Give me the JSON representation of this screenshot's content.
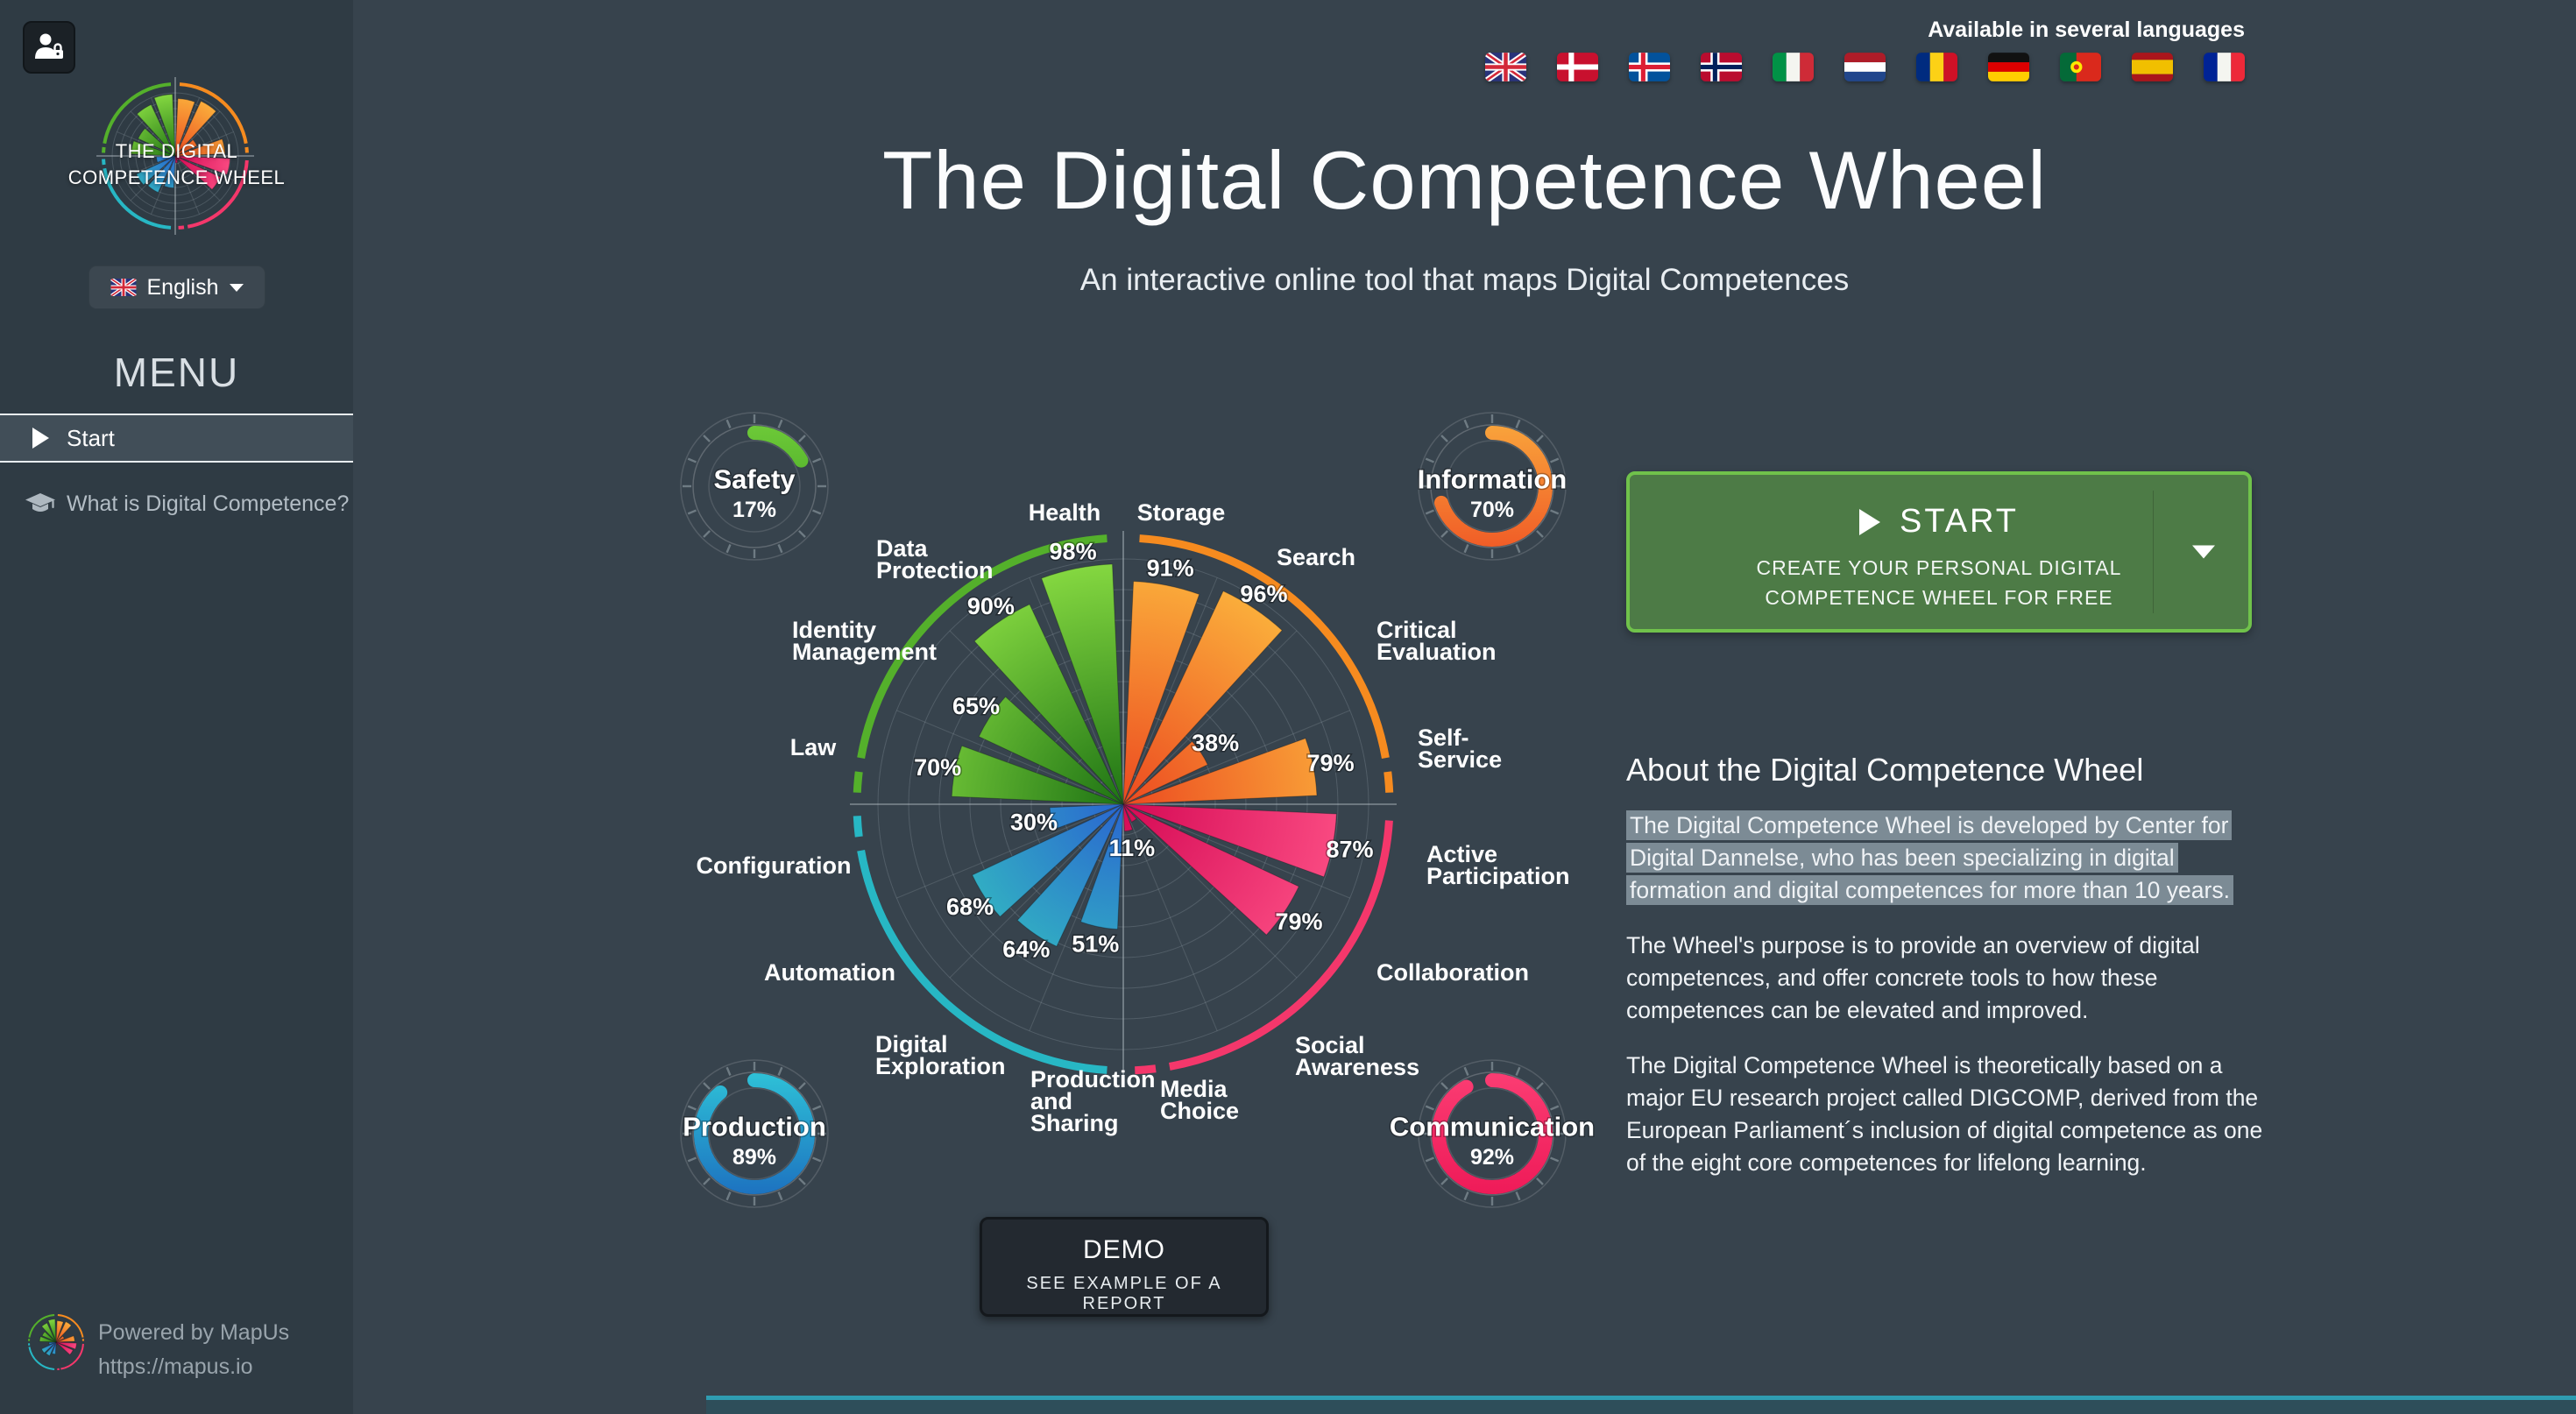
{
  "sidebar": {
    "login_icon": "user-lock-icon",
    "logo_text": "THE DIGITAL COMPETENCE WHEEL",
    "language_selector": {
      "flag": "uk",
      "label": "English",
      "caret_icon": "chevron-down-icon"
    },
    "menu_title": "MENU",
    "items": [
      {
        "label": "Start",
        "icon": "play-icon",
        "active": true
      },
      {
        "label": "What is Digital Competence?",
        "icon": "graduation-cap-icon",
        "active": false
      }
    ],
    "footer": {
      "line1": "Powered by MapUs",
      "line2": "https://mapus.io",
      "logo": "mapus-wheel-logo"
    }
  },
  "header": {
    "languages_note": "Available in several languages",
    "flags": [
      "uk",
      "denmark",
      "iceland",
      "norway",
      "italy",
      "netherlands",
      "romania",
      "germany",
      "portugal",
      "spain",
      "france"
    ],
    "title": "The Digital Competence Wheel",
    "subtitle": "An interactive online tool that maps Digital Competences"
  },
  "start_button": {
    "icon": "play-icon",
    "label": "START",
    "sublabel": "CREATE YOUR PERSONAL DIGITAL COMPETENCE WHEEL FOR FREE",
    "caret_icon": "chevron-down-icon",
    "fill_color": "#4D7B46",
    "border_color": "#70C24B"
  },
  "demo_button": {
    "label": "DEMO",
    "sublabel": "SEE EXAMPLE OF A REPORT"
  },
  "about": {
    "heading": "About the Digital Competence Wheel",
    "paragraphs": [
      "The Digital Competence Wheel is developed by Center for Digital Dannelse, who has been specializing in digital formation and digital competences for more than 10 years.",
      "The Wheel's purpose is to provide an overview of digital competences, and offer concrete tools to how these competences can be elevated and improved.",
      "The Digital Competence Wheel is theoretically based on a major EU research project called DIGCOMP, derived from the European Parliament´s inclusion of digital competence as one of the eight core competences for lifelong learning."
    ],
    "selected_paragraph_index": 0
  },
  "chart_data": {
    "type": "bar",
    "subtype": "polar-competence-wheel",
    "title": "The Digital Competence Wheel",
    "units": "%",
    "rlim": [
      0,
      100
    ],
    "grid": true,
    "sectors": [
      {
        "label_lines": [
          "Storage"
        ],
        "value": 91,
        "area": "Information"
      },
      {
        "label_lines": [
          "Search"
        ],
        "value": 96,
        "area": "Information"
      },
      {
        "label_lines": [
          "Critical",
          "Evaluation"
        ],
        "value": 38,
        "area": "Information"
      },
      {
        "label_lines": [
          "Self-",
          "Service"
        ],
        "value": 79,
        "area": "Information"
      },
      {
        "label_lines": [
          "Active",
          "Participation"
        ],
        "value": 87,
        "area": "Communication"
      },
      {
        "label_lines": [
          "Collaboration"
        ],
        "value": 79,
        "area": "Communication"
      },
      {
        "label_lines": [
          "Social",
          "Awareness"
        ],
        "value": 8,
        "value_label_visible": false,
        "value_estimated": true,
        "area": "Communication"
      },
      {
        "label_lines": [
          "Media",
          "Choice"
        ],
        "value": 11,
        "area": "Communication"
      },
      {
        "label_lines": [
          "Production",
          "and",
          "Sharing"
        ],
        "value": 51,
        "area": "Production"
      },
      {
        "label_lines": [
          "Digital",
          "Exploration"
        ],
        "value": 64,
        "area": "Production"
      },
      {
        "label_lines": [
          "Automation"
        ],
        "value": 68,
        "area": "Production"
      },
      {
        "label_lines": [
          "Configuration"
        ],
        "value": 30,
        "area": "Production"
      },
      {
        "label_lines": [
          "Law"
        ],
        "value": 70,
        "area": "Safety"
      },
      {
        "label_lines": [
          "Identity",
          "Management"
        ],
        "value": 65,
        "area": "Safety"
      },
      {
        "label_lines": [
          "Data",
          "Protection"
        ],
        "value": 90,
        "area": "Safety"
      },
      {
        "label_lines": [
          "Health"
        ],
        "value": 98,
        "area": "Safety"
      }
    ],
    "areas": [
      {
        "name": "Safety",
        "percent": 17,
        "ring_color": "#54B02B",
        "grad": [
          "#1E7314",
          "#86D941"
        ],
        "gauge_grad": [
          "#6FCB39",
          "#3A9A20"
        ]
      },
      {
        "name": "Information",
        "percent": 70,
        "ring_color": "#F68B1F",
        "grad": [
          "#EC4A20",
          "#FBB13C"
        ],
        "gauge_grad": [
          "#F9A63C",
          "#F05A26"
        ]
      },
      {
        "name": "Production",
        "percent": 89,
        "ring_color": "#27B7C4",
        "grad": [
          "#2A66D0",
          "#35CDBD"
        ],
        "gauge_grad": [
          "#2FC4D8",
          "#1C6FBF"
        ]
      },
      {
        "name": "Communication",
        "percent": 92,
        "ring_color": "#F4376B",
        "grad": [
          "#D50A55",
          "#FE5287"
        ],
        "gauge_grad": [
          "#FB3E74",
          "#EE1957"
        ]
      }
    ],
    "quadrant_area_order": [
      "Information",
      "Communication",
      "Production",
      "Safety"
    ]
  }
}
